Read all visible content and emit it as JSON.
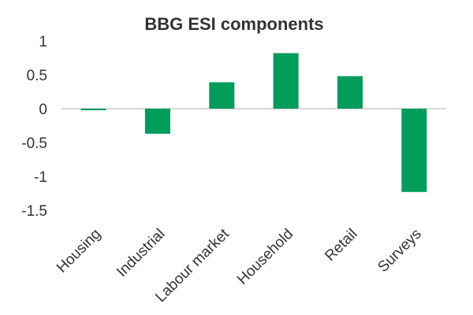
{
  "chart_data": {
    "type": "bar",
    "title": "BBG ESI components",
    "xlabel": "",
    "ylabel": "",
    "categories": [
      "Housing",
      "Industrial",
      "Labour market",
      "Household",
      "Retail",
      "Surveys"
    ],
    "values": [
      -0.02,
      -0.37,
      0.39,
      0.82,
      0.48,
      -1.23
    ],
    "ylim": [
      -1.5,
      1
    ],
    "yticks": [
      "1",
      "0.5",
      "0",
      "-0.5",
      "-1",
      "-1.5"
    ],
    "grid": false,
    "bar_color": "#009c5b",
    "axis_color": "#bfbfbf"
  }
}
